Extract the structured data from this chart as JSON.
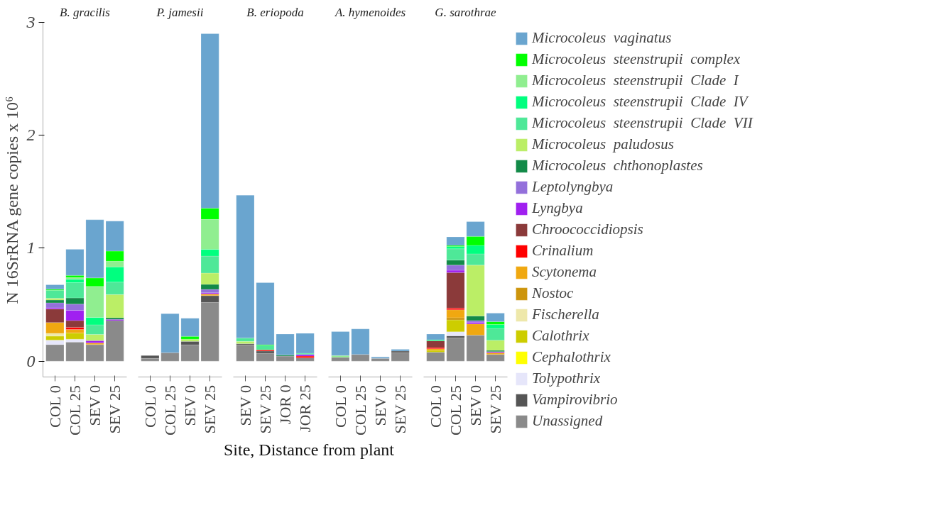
{
  "chart_data": [
    {
      "type": "bar",
      "stacked": true,
      "title": "B. gracilis",
      "ylabel": "N 16SrRNA gene copies x 10⁶",
      "categories": [
        "COL 0",
        "COL 25",
        "SEV 0",
        "SEV 25"
      ],
      "ylim": [
        -0.14,
        3
      ],
      "yticks": [
        0,
        1,
        2,
        3
      ],
      "series": [
        {
          "color": "#8a8a8a",
          "values": [
            0.147,
            0.17,
            0.147,
            0.36
          ]
        },
        {
          "color": "#e6e6fa",
          "values": [
            0.04,
            0.025,
            null,
            null
          ]
        },
        {
          "color": "#cdcd00",
          "values": [
            0.035,
            0.055,
            null,
            null
          ]
        },
        {
          "color": "#eee8aa",
          "values": [
            0.025,
            null,
            null,
            null
          ]
        },
        {
          "color": "#f0a810",
          "values": [
            0.095,
            0.03,
            0.015,
            null
          ]
        },
        {
          "color": "#ff0000",
          "values": [
            null,
            0.02,
            null,
            null
          ]
        },
        {
          "color": "#8b3a3a",
          "values": [
            0.12,
            0.06,
            null,
            null
          ]
        },
        {
          "color": "#a020f0",
          "values": [
            0.01,
            0.09,
            0.02,
            0.01
          ]
        },
        {
          "color": "#9370db",
          "values": [
            0.045,
            0.055,
            null,
            null
          ]
        },
        {
          "color": "#128a48",
          "values": [
            0.025,
            0.055,
            null,
            0.015
          ]
        },
        {
          "color": "#bbee66",
          "values": [
            0.015,
            null,
            0.055,
            0.205
          ]
        },
        {
          "color": "#4ee898",
          "values": [
            0.07,
            0.135,
            0.085,
            0.11
          ]
        },
        {
          "color": "#00ff7f",
          "values": [
            null,
            0.03,
            0.065,
            0.135
          ]
        },
        {
          "color": "#90ee90",
          "values": [
            null,
            0.015,
            0.275,
            0.05
          ]
        },
        {
          "color": "#00ff00",
          "values": [
            0.01,
            0.02,
            0.075,
            0.09
          ]
        },
        {
          "color": "#6aa5cf",
          "values": [
            0.04,
            0.23,
            0.515,
            0.265
          ]
        }
      ]
    },
    {
      "type": "bar",
      "stacked": true,
      "title": "P. jamesii",
      "categories": [
        "COL 0",
        "COL 25",
        "SEV 0",
        "SEV 25"
      ],
      "ylim": [
        -0.14,
        3
      ],
      "yticks": [
        0,
        1,
        2,
        3
      ],
      "tick_labels": "x",
      "series": [
        {
          "color": "#8a8a8a",
          "values": [
            0.025,
            0.075,
            0.145,
            0.52
          ]
        },
        {
          "color": "#555555",
          "values": [
            0.025,
            null,
            0.03,
            0.06
          ]
        },
        {
          "color": "#f0a810",
          "values": [
            null,
            null,
            null,
            0.015
          ]
        },
        {
          "color": "#a020f0",
          "values": [
            null,
            null,
            null,
            0.01
          ]
        },
        {
          "color": "#9370db",
          "values": [
            null,
            null,
            null,
            0.03
          ]
        },
        {
          "color": "#128a48",
          "values": [
            null,
            null,
            null,
            0.045
          ]
        },
        {
          "color": "#bbee66",
          "values": [
            null,
            null,
            0.02,
            0.1
          ]
        },
        {
          "color": "#4ee898",
          "values": [
            null,
            null,
            null,
            0.15
          ]
        },
        {
          "color": "#00ff7f",
          "values": [
            null,
            null,
            null,
            0.06
          ]
        },
        {
          "color": "#90ee90",
          "values": [
            null,
            null,
            null,
            0.265
          ]
        },
        {
          "color": "#00ff00",
          "values": [
            null,
            null,
            0.025,
            0.1
          ]
        },
        {
          "color": "#6aa5cf",
          "values": [
            null,
            0.345,
            0.16,
            1.545
          ]
        }
      ]
    },
    {
      "type": "bar",
      "stacked": true,
      "title": "B. eriopoda",
      "xlabel": "Site, Distance from plant",
      "categories": [
        "SEV 0",
        "SEV 25",
        "JOR 0",
        "JOR 25"
      ],
      "ylim": [
        -0.14,
        3
      ],
      "yticks": [
        0,
        1,
        2,
        3
      ],
      "tick_labels": "x",
      "series": [
        {
          "color": "#8a8a8a",
          "values": [
            0.145,
            0.07,
            0.045,
            0.03
          ]
        },
        {
          "color": "#555555",
          "values": [
            0.01,
            0.02,
            null,
            null
          ]
        },
        {
          "color": "#ff0000",
          "values": [
            null,
            0.01,
            null,
            0.015
          ]
        },
        {
          "color": "#a020f0",
          "values": [
            null,
            null,
            null,
            0.015
          ]
        },
        {
          "color": "#128a48",
          "values": [
            null,
            null,
            0.01,
            null
          ]
        },
        {
          "color": "#bbee66",
          "values": [
            0.02,
            null,
            null,
            null
          ]
        },
        {
          "color": "#4ee898",
          "values": [
            0.03,
            0.04,
            null,
            0.01
          ]
        },
        {
          "color": "#00ff00",
          "values": [
            null,
            0.005,
            null,
            null
          ]
        },
        {
          "color": "#6aa5cf",
          "values": [
            1.265,
            0.55,
            0.185,
            0.177
          ]
        }
      ]
    },
    {
      "type": "bar",
      "stacked": true,
      "title": "A. hymenoides",
      "categories": [
        "COL 0",
        "COL 25",
        "SEV 0",
        "SEV 25"
      ],
      "ylim": [
        -0.14,
        3
      ],
      "yticks": [
        0,
        1,
        2,
        3
      ],
      "tick_labels": "x",
      "series": [
        {
          "color": "#8a8a8a",
          "values": [
            0.035,
            0.06,
            0.025,
            0.075
          ]
        },
        {
          "color": "#555555",
          "values": [
            null,
            null,
            null,
            0.015
          ]
        },
        {
          "color": "#90ee90",
          "values": [
            0.015,
            null,
            null,
            null
          ]
        },
        {
          "color": "#6aa5cf",
          "values": [
            0.212,
            0.225,
            0.012,
            0.015
          ]
        }
      ]
    },
    {
      "type": "bar",
      "stacked": true,
      "title": "G. sarothrae",
      "categories": [
        "COL 0",
        "COL 25",
        "SEV 0",
        "SEV 25"
      ],
      "ylim": [
        -0.14,
        3
      ],
      "yticks": [
        0,
        1,
        2,
        3
      ],
      "tick_labels": "x",
      "legend": "right",
      "series": [
        {
          "name": "Unassigned",
          "color": "#8a8a8a",
          "values": [
            0.08,
            0.205,
            0.23,
            0.06
          ]
        },
        {
          "name": "Vampirovibrio",
          "color": "#555555",
          "values": [
            null,
            0.02,
            null,
            null
          ]
        },
        {
          "name": "Tolypothrix",
          "color": "#e6e6fa",
          "values": [
            null,
            0.035,
            null,
            null
          ]
        },
        {
          "name": "Cephalothrix",
          "color": "#ffff00",
          "values": [
            null,
            null,
            null,
            null
          ]
        },
        {
          "name": "Calothrix",
          "color": "#cdcd00",
          "values": [
            0.015,
            0.105,
            null,
            null
          ]
        },
        {
          "name": "Fischerella",
          "color": "#eee8aa",
          "values": [
            null,
            null,
            null,
            null
          ]
        },
        {
          "name": "Nostoc",
          "color": "#cd950c",
          "values": [
            null,
            0.02,
            null,
            null
          ]
        },
        {
          "name": "Scytonema",
          "color": "#f0a810",
          "values": [
            0.015,
            0.07,
            0.1,
            0.015
          ]
        },
        {
          "name": "Crinalium",
          "color": "#ff0000",
          "values": [
            0.01,
            0.015,
            null,
            null
          ]
        },
        {
          "name": "Chroococcidiopsis",
          "color": "#8b3a3a",
          "values": [
            0.06,
            0.315,
            null,
            null
          ]
        },
        {
          "name": "Lyngbya",
          "color": "#a020f0",
          "values": [
            null,
            0.02,
            0.015,
            0.01
          ]
        },
        {
          "name": "Leptolyngbya",
          "color": "#9370db",
          "values": [
            null,
            0.045,
            0.015,
            null
          ]
        },
        {
          "name": "Microcoleus  chthonoplastes",
          "color": "#128a48",
          "values": [
            null,
            0.045,
            0.04,
            0.01
          ]
        },
        {
          "name": "Microcoleus  paludosus",
          "color": "#bbee66",
          "values": [
            null,
            null,
            0.45,
            0.09
          ]
        },
        {
          "name": "Microcoleus  steenstrupii  Clade  VII",
          "color": "#4ee898",
          "values": [
            null,
            0.1,
            0.1,
            0.105
          ]
        },
        {
          "name": "Microcoleus  steenstrupii  Clade  IV",
          "color": "#00ff7f",
          "values": [
            0.01,
            0.02,
            0.075,
            0.035
          ]
        },
        {
          "name": "Microcoleus  steenstrupii  Clade  I",
          "color": "#90ee90",
          "values": [
            null,
            null,
            null,
            null
          ]
        },
        {
          "name": "Microcoleus  steenstrupii  complex",
          "color": "#00ff00",
          "values": [
            null,
            0.01,
            0.08,
            0.025
          ]
        },
        {
          "name": "Microcoleus  vaginatus",
          "color": "#6aa5cf",
          "values": [
            0.05,
            0.075,
            0.13,
            0.075
          ]
        }
      ]
    }
  ]
}
